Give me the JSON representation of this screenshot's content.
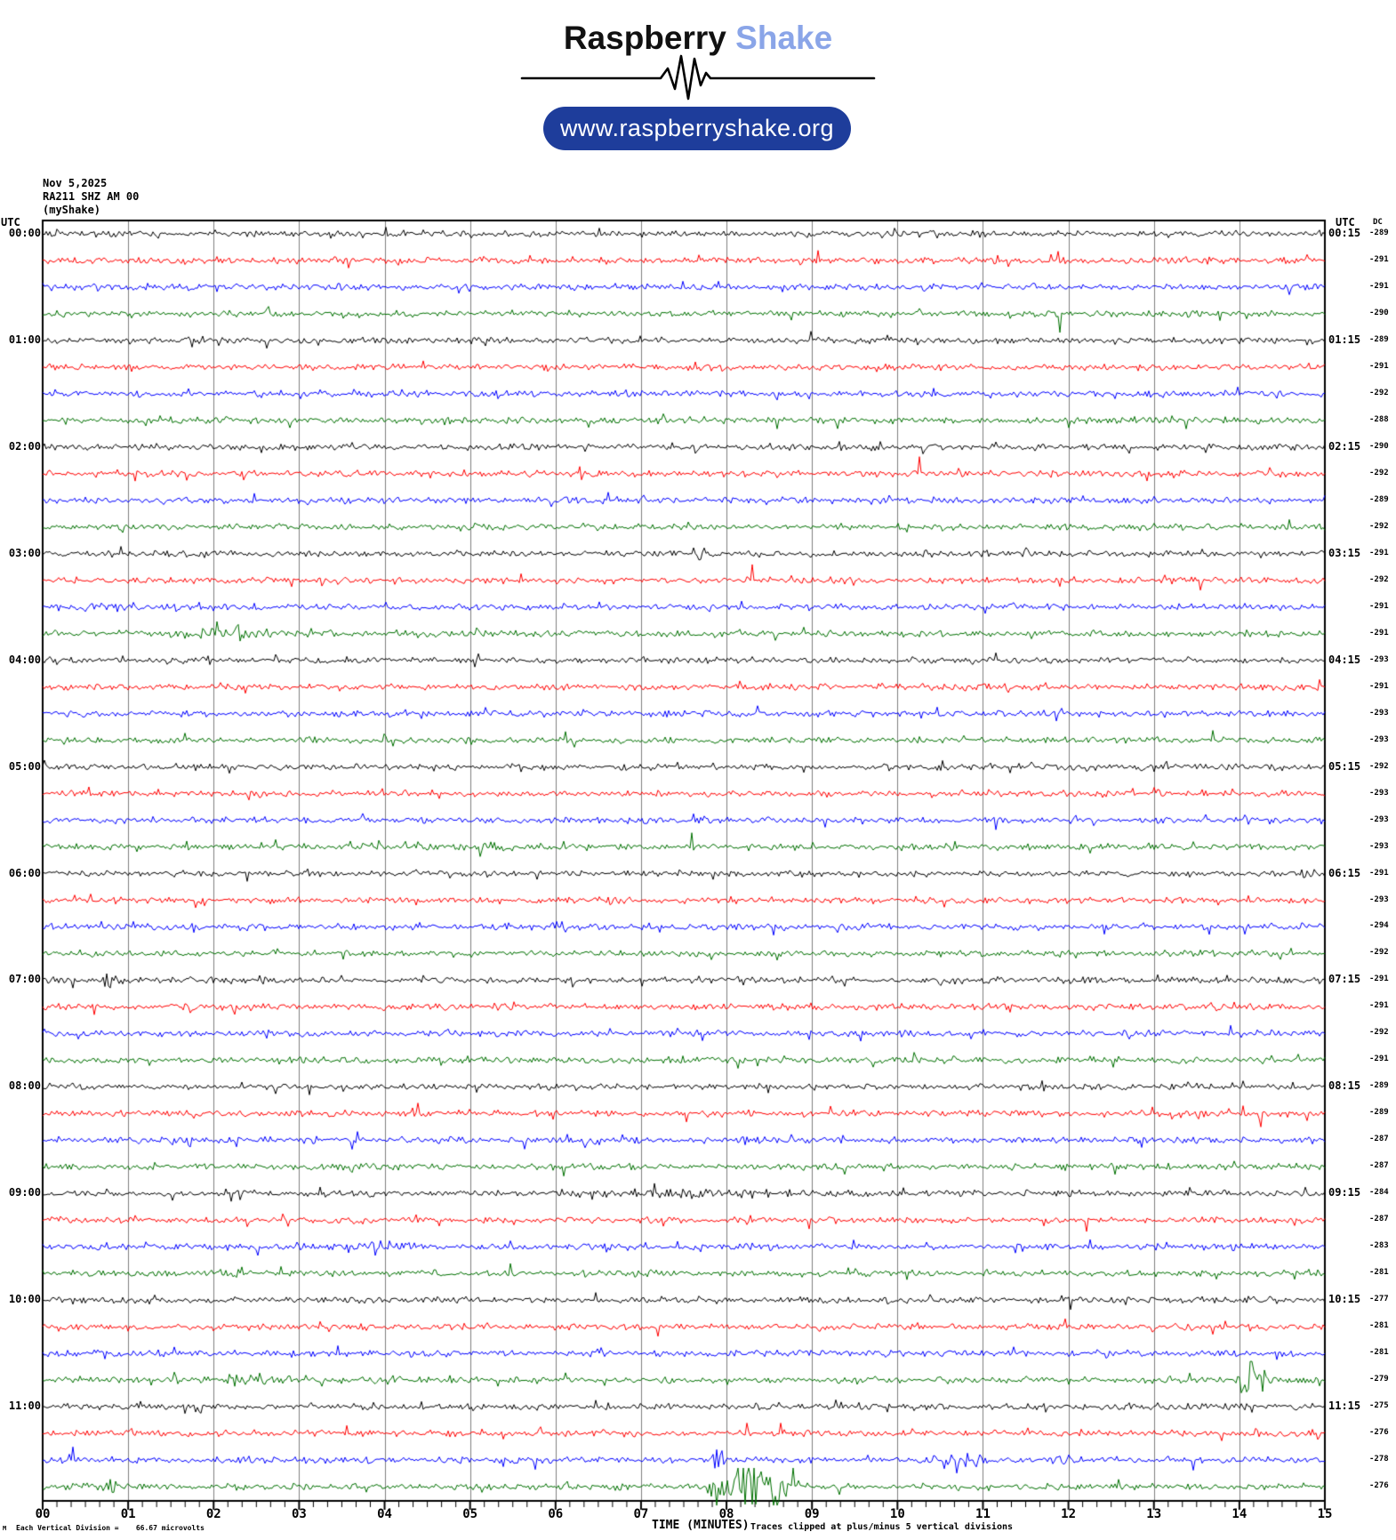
{
  "logo": {
    "brand_word1": "Raspberry",
    "brand_word2": "Shake",
    "brand_blue": "#8aa5e8",
    "button_label": "www.raspberryshake.org",
    "button_bg": "#1e3d9b"
  },
  "header": {
    "date": "Nov 5,2025",
    "station": "RA211 SHZ AM 00",
    "network": "(myShake)"
  },
  "axis": {
    "utc_left": "UTC",
    "utc_right": "UTC",
    "dc_header": "DC",
    "xlabel": "TIME (MINUTES)",
    "footer_prefix": "M",
    "footer_left": "Each Vertical Division =    66.67 microvolts",
    "footer_right": "Traces clipped at plus/minus 5 vertical divisions"
  },
  "chart_data": {
    "type": "line",
    "subtype": "helicorder-seismogram",
    "x_axis": {
      "label": "TIME (MINUTES)",
      "min": 0,
      "max": 15,
      "tick_labels": [
        "00",
        "01",
        "02",
        "03",
        "04",
        "05",
        "06",
        "07",
        "08",
        "09",
        "10",
        "11",
        "12",
        "13",
        "14",
        "15"
      ],
      "minor_ticks_per_minute": 6,
      "gridlines_every_minute": true
    },
    "row_duration_minutes": 15,
    "clip_note": "Traces clipped at plus/minus 5 vertical divisions",
    "division_value": "66.67 microvolts",
    "grid_color": "#808080",
    "trace_color_cycle": {
      "names": [
        "black",
        "red",
        "blue",
        "green"
      ],
      "hex": [
        "#000000",
        "#ff0000",
        "#0000ff",
        "#007000"
      ]
    },
    "rows": [
      {
        "start": "00:00",
        "end": "00:15",
        "color": "black",
        "dc": -289,
        "left_label": "00:00",
        "right_label": "00:15"
      },
      {
        "start": "00:15",
        "end": "00:30",
        "color": "red",
        "dc": -291,
        "left_label": null,
        "right_label": null
      },
      {
        "start": "00:30",
        "end": "00:45",
        "color": "blue",
        "dc": -291,
        "left_label": null,
        "right_label": null
      },
      {
        "start": "00:45",
        "end": "01:00",
        "color": "green",
        "dc": -290,
        "left_label": null,
        "right_label": null
      },
      {
        "start": "01:00",
        "end": "01:15",
        "color": "black",
        "dc": -289,
        "left_label": "01:00",
        "right_label": "01:15"
      },
      {
        "start": "01:15",
        "end": "01:30",
        "color": "red",
        "dc": -291,
        "left_label": null,
        "right_label": null
      },
      {
        "start": "01:30",
        "end": "01:45",
        "color": "blue",
        "dc": -292,
        "left_label": null,
        "right_label": null
      },
      {
        "start": "01:45",
        "end": "02:00",
        "color": "green",
        "dc": -288,
        "left_label": null,
        "right_label": null
      },
      {
        "start": "02:00",
        "end": "02:15",
        "color": "black",
        "dc": -290,
        "left_label": "02:00",
        "right_label": "02:15"
      },
      {
        "start": "02:15",
        "end": "02:30",
        "color": "red",
        "dc": -292,
        "left_label": null,
        "right_label": null
      },
      {
        "start": "02:30",
        "end": "02:45",
        "color": "blue",
        "dc": -289,
        "left_label": null,
        "right_label": null
      },
      {
        "start": "02:45",
        "end": "03:00",
        "color": "green",
        "dc": -292,
        "left_label": null,
        "right_label": null
      },
      {
        "start": "03:00",
        "end": "03:15",
        "color": "black",
        "dc": -291,
        "left_label": "03:00",
        "right_label": "03:15"
      },
      {
        "start": "03:15",
        "end": "03:30",
        "color": "red",
        "dc": -292,
        "left_label": null,
        "right_label": null
      },
      {
        "start": "03:30",
        "end": "03:45",
        "color": "blue",
        "dc": -291,
        "left_label": null,
        "right_label": null
      },
      {
        "start": "03:45",
        "end": "04:00",
        "color": "green",
        "dc": -291,
        "left_label": null,
        "right_label": null
      },
      {
        "start": "04:00",
        "end": "04:15",
        "color": "black",
        "dc": -293,
        "left_label": "04:00",
        "right_label": "04:15"
      },
      {
        "start": "04:15",
        "end": "04:30",
        "color": "red",
        "dc": -291,
        "left_label": null,
        "right_label": null
      },
      {
        "start": "04:30",
        "end": "04:45",
        "color": "blue",
        "dc": -293,
        "left_label": null,
        "right_label": null
      },
      {
        "start": "04:45",
        "end": "05:00",
        "color": "green",
        "dc": -293,
        "left_label": null,
        "right_label": null
      },
      {
        "start": "05:00",
        "end": "05:15",
        "color": "black",
        "dc": -292,
        "left_label": "05:00",
        "right_label": "05:15"
      },
      {
        "start": "05:15",
        "end": "05:30",
        "color": "red",
        "dc": -293,
        "left_label": null,
        "right_label": null
      },
      {
        "start": "05:30",
        "end": "05:45",
        "color": "blue",
        "dc": -293,
        "left_label": null,
        "right_label": null
      },
      {
        "start": "05:45",
        "end": "06:00",
        "color": "green",
        "dc": -293,
        "left_label": null,
        "right_label": null
      },
      {
        "start": "06:00",
        "end": "06:15",
        "color": "black",
        "dc": -291,
        "left_label": "06:00",
        "right_label": "06:15"
      },
      {
        "start": "06:15",
        "end": "06:30",
        "color": "red",
        "dc": -293,
        "left_label": null,
        "right_label": null
      },
      {
        "start": "06:30",
        "end": "06:45",
        "color": "blue",
        "dc": -294,
        "left_label": null,
        "right_label": null
      },
      {
        "start": "06:45",
        "end": "07:00",
        "color": "green",
        "dc": -292,
        "left_label": null,
        "right_label": null
      },
      {
        "start": "07:00",
        "end": "07:15",
        "color": "black",
        "dc": -291,
        "left_label": "07:00",
        "right_label": "07:15"
      },
      {
        "start": "07:15",
        "end": "07:30",
        "color": "red",
        "dc": -291,
        "left_label": null,
        "right_label": null
      },
      {
        "start": "07:30",
        "end": "07:45",
        "color": "blue",
        "dc": -292,
        "left_label": null,
        "right_label": null
      },
      {
        "start": "07:45",
        "end": "08:00",
        "color": "green",
        "dc": -291,
        "left_label": null,
        "right_label": null
      },
      {
        "start": "08:00",
        "end": "08:15",
        "color": "black",
        "dc": -289,
        "left_label": "08:00",
        "right_label": "08:15"
      },
      {
        "start": "08:15",
        "end": "08:30",
        "color": "red",
        "dc": -289,
        "left_label": null,
        "right_label": null
      },
      {
        "start": "08:30",
        "end": "08:45",
        "color": "blue",
        "dc": -287,
        "left_label": null,
        "right_label": null
      },
      {
        "start": "08:45",
        "end": "09:00",
        "color": "green",
        "dc": -287,
        "left_label": null,
        "right_label": null
      },
      {
        "start": "09:00",
        "end": "09:15",
        "color": "black",
        "dc": -284,
        "left_label": "09:00",
        "right_label": "09:15"
      },
      {
        "start": "09:15",
        "end": "09:30",
        "color": "red",
        "dc": -287,
        "left_label": null,
        "right_label": null
      },
      {
        "start": "09:30",
        "end": "09:45",
        "color": "blue",
        "dc": -283,
        "left_label": null,
        "right_label": null
      },
      {
        "start": "09:45",
        "end": "10:00",
        "color": "green",
        "dc": -281,
        "left_label": null,
        "right_label": null
      },
      {
        "start": "10:00",
        "end": "10:15",
        "color": "black",
        "dc": -277,
        "left_label": "10:00",
        "right_label": "10:15"
      },
      {
        "start": "10:15",
        "end": "10:30",
        "color": "red",
        "dc": -281,
        "left_label": null,
        "right_label": null
      },
      {
        "start": "10:30",
        "end": "10:45",
        "color": "blue",
        "dc": -281,
        "left_label": null,
        "right_label": null
      },
      {
        "start": "10:45",
        "end": "11:00",
        "color": "green",
        "dc": -279,
        "left_label": null,
        "right_label": null
      },
      {
        "start": "11:00",
        "end": "11:15",
        "color": "black",
        "dc": -275,
        "left_label": "11:00",
        "right_label": "11:15"
      },
      {
        "start": "11:15",
        "end": "11:30",
        "color": "red",
        "dc": -276,
        "left_label": null,
        "right_label": null
      },
      {
        "start": "11:30",
        "end": "11:45",
        "color": "blue",
        "dc": -278,
        "left_label": null,
        "right_label": null
      },
      {
        "start": "11:45",
        "end": "12:00",
        "color": "green",
        "dc": -276,
        "left_label": null,
        "right_label": null
      }
    ],
    "events": [
      {
        "row": 15,
        "minute": 2.15,
        "amp": 2.6,
        "sigma_min": 0.25
      },
      {
        "row": 23,
        "minute": 4.5,
        "amp": 2.0,
        "sigma_min": 0.12
      },
      {
        "row": 23,
        "minute": 5.15,
        "amp": 2.2,
        "sigma_min": 0.18
      },
      {
        "row": 24,
        "minute": 14.8,
        "amp": 3.2,
        "sigma_min": 0.05
      },
      {
        "row": 26,
        "minute": 6.03,
        "amp": 2.6,
        "sigma_min": 0.04
      },
      {
        "row": 28,
        "minute": 0.75,
        "amp": 2.8,
        "sigma_min": 0.05
      },
      {
        "row": 28,
        "minute": 10.6,
        "amp": 2.2,
        "sigma_min": 0.08
      },
      {
        "row": 33,
        "minute": 4.35,
        "amp": 3.5,
        "sigma_min": 0.03
      },
      {
        "row": 33,
        "minute": 14.28,
        "amp": 6.0,
        "sigma_min": 0.035
      },
      {
        "row": 34,
        "minute": 8.3,
        "amp": 2.6,
        "sigma_min": 0.05
      },
      {
        "row": 36,
        "minute": 7.5,
        "amp": 1.6,
        "sigma_min": 0.8
      },
      {
        "row": 38,
        "minute": 3.85,
        "amp": 2.3,
        "sigma_min": 0.28
      },
      {
        "row": 39,
        "minute": 2.3,
        "amp": 2.2,
        "sigma_min": 0.12
      },
      {
        "row": 40,
        "minute": 9.85,
        "amp": 4.0,
        "sigma_min": 0.03
      },
      {
        "row": 42,
        "minute": 12.45,
        "amp": 2.4,
        "sigma_min": 0.06
      },
      {
        "row": 43,
        "minute": 2.55,
        "amp": 2.4,
        "sigma_min": 0.28
      },
      {
        "row": 43,
        "minute": 14.15,
        "amp": 11.0,
        "sigma_min": 0.09
      },
      {
        "row": 44,
        "minute": 13.4,
        "amp": 1.8,
        "sigma_min": 0.2
      },
      {
        "row": 46,
        "minute": 7.9,
        "amp": 6.0,
        "sigma_min": 0.045
      },
      {
        "row": 46,
        "minute": 10.75,
        "amp": 3.0,
        "sigma_min": 0.18
      },
      {
        "row": 46,
        "minute": 11.85,
        "amp": 2.2,
        "sigma_min": 0.12
      },
      {
        "row": 47,
        "minute": 0.75,
        "amp": 2.4,
        "sigma_min": 0.1
      },
      {
        "row": 47,
        "minute": 7.85,
        "amp": 5.0,
        "sigma_min": 0.06
      },
      {
        "row": 47,
        "minute": 8.2,
        "amp": 11.0,
        "sigma_min": 0.12
      },
      {
        "row": 47,
        "minute": 8.55,
        "amp": 9.0,
        "sigma_min": 0.15
      }
    ]
  }
}
